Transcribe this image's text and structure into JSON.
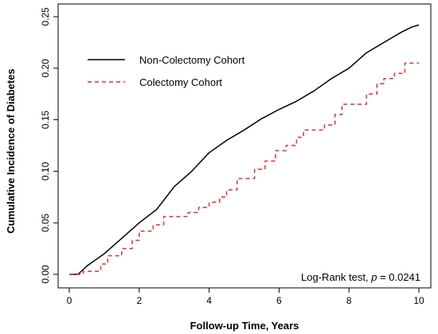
{
  "chart_data": {
    "type": "line",
    "xlabel": "Follow-up Time, Years",
    "ylabel": "Cumulative Incidence of Diabetes",
    "xlim": [
      0,
      10
    ],
    "ylim": [
      0,
      0.25
    ],
    "x_ticks": [
      0,
      2,
      4,
      6,
      8,
      10
    ],
    "x_tick_labels": [
      "0",
      "2",
      "4",
      "6",
      "8",
      "10"
    ],
    "y_ticks": [
      0.0,
      0.05,
      0.1,
      0.15,
      0.2,
      0.25
    ],
    "y_tick_labels": [
      "0.00",
      "0.05",
      "0.10",
      "0.15",
      "0.20",
      "0.25"
    ],
    "grid": false,
    "legend_position": "top-left",
    "annotation": {
      "prefix": "Log-Rank test, ",
      "p_symbol": "p",
      "suffix": " = 0.0241"
    },
    "series": [
      {
        "name": "Non-Colectomy Cohort",
        "color": "#000000",
        "dash": "solid",
        "step": false,
        "points": [
          [
            0,
            0
          ],
          [
            0.25,
            0
          ],
          [
            0.5,
            0.008
          ],
          [
            1.0,
            0.02
          ],
          [
            1.5,
            0.035
          ],
          [
            2.0,
            0.05
          ],
          [
            2.5,
            0.063
          ],
          [
            3.0,
            0.085
          ],
          [
            3.5,
            0.1
          ],
          [
            4.0,
            0.118
          ],
          [
            4.5,
            0.13
          ],
          [
            5.0,
            0.14
          ],
          [
            5.5,
            0.151
          ],
          [
            6.0,
            0.16
          ],
          [
            6.5,
            0.168
          ],
          [
            7.0,
            0.178
          ],
          [
            7.5,
            0.19
          ],
          [
            8.0,
            0.2
          ],
          [
            8.5,
            0.215
          ],
          [
            9.0,
            0.225
          ],
          [
            9.5,
            0.235
          ],
          [
            9.8,
            0.24
          ],
          [
            10.0,
            0.242
          ]
        ]
      },
      {
        "name": "Colectomy Cohort",
        "color": "#e8302a",
        "dash": "dashed",
        "step": true,
        "points": [
          [
            0,
            0
          ],
          [
            0.4,
            0.003
          ],
          [
            0.9,
            0.01
          ],
          [
            1.1,
            0.018
          ],
          [
            1.5,
            0.025
          ],
          [
            1.8,
            0.033
          ],
          [
            2.0,
            0.042
          ],
          [
            2.4,
            0.048
          ],
          [
            2.7,
            0.056
          ],
          [
            3.4,
            0.06
          ],
          [
            3.7,
            0.065
          ],
          [
            4.0,
            0.07
          ],
          [
            4.3,
            0.075
          ],
          [
            4.5,
            0.082
          ],
          [
            4.8,
            0.093
          ],
          [
            5.3,
            0.102
          ],
          [
            5.6,
            0.11
          ],
          [
            5.9,
            0.12
          ],
          [
            6.2,
            0.125
          ],
          [
            6.5,
            0.133
          ],
          [
            6.7,
            0.14
          ],
          [
            7.0,
            0.14
          ],
          [
            7.3,
            0.145
          ],
          [
            7.6,
            0.155
          ],
          [
            7.8,
            0.165
          ],
          [
            8.3,
            0.165
          ],
          [
            8.5,
            0.175
          ],
          [
            8.8,
            0.185
          ],
          [
            9.0,
            0.19
          ],
          [
            9.3,
            0.195
          ],
          [
            9.6,
            0.205
          ],
          [
            10.0,
            0.205
          ]
        ]
      }
    ]
  }
}
